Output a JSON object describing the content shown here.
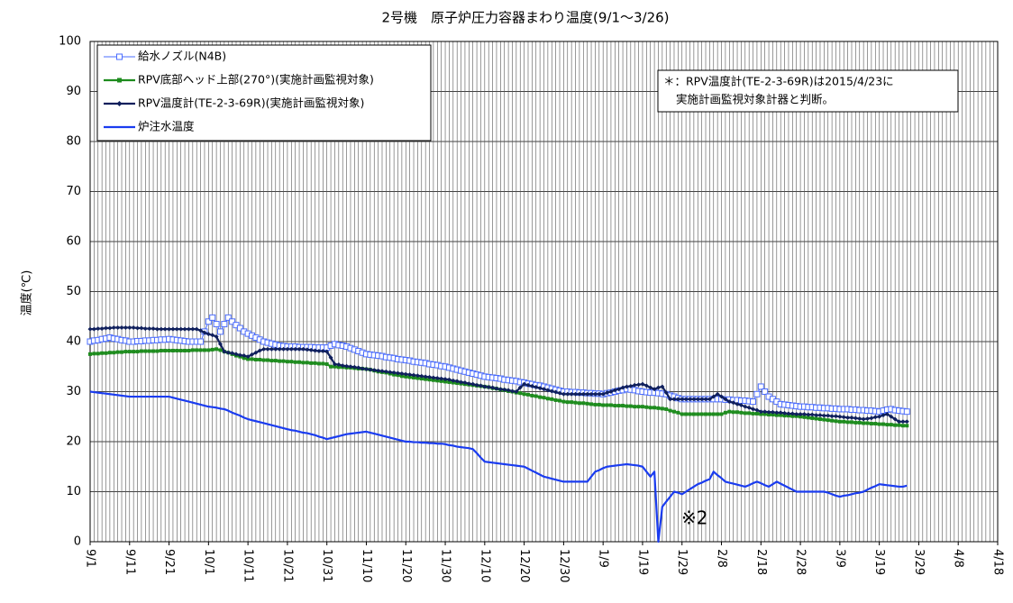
{
  "chart_data": {
    "type": "line",
    "title": "2号機　原子炉圧力容器まわり温度(9/1～3/26)",
    "y_label": "温度(℃)",
    "legend": "upper left",
    "grid": true,
    "ylim": [
      0,
      100
    ],
    "yticks": [
      0,
      10,
      20,
      30,
      40,
      50,
      60,
      70,
      80,
      90,
      100
    ],
    "annotations": [
      {
        "text": "※2"
      }
    ],
    "note": [
      "＊：RPV温度計(TE-2-3-69R)は2015/4/23に",
      "実施計画監視対象計器と判断。"
    ],
    "categories": [
      "9/1",
      null,
      null,
      null,
      null,
      null,
      null,
      null,
      null,
      null,
      "9/11",
      null,
      null,
      null,
      null,
      null,
      null,
      null,
      null,
      null,
      "9/21",
      null,
      null,
      null,
      null,
      null,
      null,
      null,
      null,
      null,
      "10/1",
      null,
      null,
      null,
      null,
      null,
      null,
      null,
      null,
      null,
      "10/11",
      null,
      null,
      null,
      null,
      null,
      null,
      null,
      null,
      null,
      "10/21",
      null,
      null,
      null,
      null,
      null,
      null,
      null,
      null,
      null,
      "10/31",
      null,
      null,
      null,
      null,
      null,
      null,
      null,
      null,
      null,
      "11/10",
      null,
      null,
      null,
      null,
      null,
      null,
      null,
      null,
      null,
      "11/20",
      null,
      null,
      null,
      null,
      null,
      null,
      null,
      null,
      null,
      "11/30",
      null,
      null,
      null,
      null,
      null,
      null,
      null,
      null,
      null,
      "12/10",
      null,
      null,
      null,
      null,
      null,
      null,
      null,
      null,
      null,
      "12/20",
      null,
      null,
      null,
      null,
      null,
      null,
      null,
      null,
      null,
      "12/30",
      null,
      null,
      null,
      null,
      null,
      null,
      null,
      null,
      null,
      "1/9",
      null,
      null,
      null,
      null,
      null,
      null,
      null,
      null,
      null,
      "1/19",
      null,
      null,
      null,
      null,
      null,
      null,
      null,
      null,
      null,
      "1/29",
      null,
      null,
      null,
      null,
      null,
      null,
      null,
      null,
      null,
      "2/8",
      null,
      null,
      null,
      null,
      null,
      null,
      null,
      null,
      null,
      "2/18",
      null,
      null,
      null,
      null,
      null,
      null,
      null,
      null,
      null,
      "2/28",
      null,
      null,
      null,
      null,
      null,
      null,
      null,
      null,
      null,
      "3/9",
      null,
      null,
      null,
      null,
      null,
      null,
      null,
      null,
      null,
      "3/19",
      null,
      null,
      null,
      null,
      null,
      null,
      null,
      null,
      null,
      "3/29",
      null,
      null,
      null,
      null,
      null,
      null,
      null,
      null,
      null,
      "4/8",
      null,
      null,
      null,
      null,
      null,
      null,
      null,
      null,
      null,
      "4/18"
    ],
    "series": [
      {
        "name": "給水ノズル(N4B)",
        "color": "#4a6cff",
        "marker": "square-open",
        "values": [
          40,
          40.2,
          40.3,
          40.5,
          40.6,
          40.8,
          40.6,
          40.5,
          40.3,
          40.2,
          40,
          40,
          40.1,
          40.1,
          40.2,
          40.2,
          40.3,
          40.3,
          40.4,
          40.4,
          40.5,
          40.4,
          40.3,
          40.2,
          40.1,
          40,
          40,
          40,
          40,
          42,
          44,
          44.8,
          43.5,
          42,
          43.5,
          44.8,
          44,
          43.3,
          42.7,
          42,
          41.6,
          41.2,
          40.8,
          40.4,
          40,
          39.8,
          39.6,
          39.4,
          39.2,
          39.1,
          39,
          39,
          39,
          38.9,
          38.9,
          38.9,
          38.9,
          38.8,
          38.8,
          38.8,
          38.8,
          39.2,
          39.5,
          39.3,
          39.2,
          39,
          38.7,
          38.4,
          38.1,
          37.8,
          37.5,
          37.4,
          37.3,
          37.2,
          37.1,
          36.9,
          36.8,
          36.7,
          36.5,
          36.4,
          36.3,
          36.2,
          36,
          35.9,
          35.8,
          35.7,
          35.5,
          35.4,
          35.3,
          35.1,
          35,
          34.8,
          34.6,
          34.4,
          34.2,
          34,
          33.8,
          33.6,
          33.4,
          33.2,
          33,
          32.9,
          32.8,
          32.7,
          32.6,
          32.4,
          32.3,
          32.2,
          32.1,
          31.9,
          31.8,
          31.6,
          31.5,
          31.3,
          31.2,
          31,
          30.8,
          30.6,
          30.4,
          30.2,
          30,
          30,
          29.9,
          29.9,
          29.8,
          29.8,
          29.7,
          29.7,
          29.6,
          29.6,
          29.5,
          29.7,
          29.8,
          30,
          30.2,
          30.3,
          30.5,
          30.4,
          30.3,
          30.1,
          30,
          29.9,
          29.8,
          29.8,
          29.7,
          29.6,
          29.5,
          29.2,
          29,
          28.7,
          28.5,
          28.5,
          28.5,
          28.5,
          28.5,
          28.5,
          28.5,
          28.5,
          28.5,
          28.5,
          28.5,
          28.4,
          28.4,
          28.3,
          28.3,
          28.2,
          28.2,
          28.1,
          28,
          29.5,
          31,
          30,
          29,
          28.5,
          28,
          27.5,
          27.4,
          27.3,
          27.2,
          27.1,
          27,
          27,
          26.9,
          26.9,
          26.8,
          26.8,
          26.7,
          26.7,
          26.6,
          26.6,
          26.5,
          26.5,
          26.5,
          26.4,
          26.4,
          26.3,
          26.3,
          26.2,
          26.2,
          26.1,
          26,
          26.2,
          26.4,
          26.5,
          26.3,
          26.2,
          26.1,
          26,
          null,
          null,
          null,
          null,
          null,
          null,
          null,
          null,
          null,
          null,
          null,
          null,
          null,
          null,
          null,
          null,
          null,
          null,
          null,
          null,
          null,
          null,
          null
        ]
      },
      {
        "name": "RPV底部ヘッド上部(270°)(実施計画監視対象)",
        "color": "#1e8c1e",
        "marker": "square",
        "values": [
          37.5,
          37.6,
          37.6,
          37.7,
          37.7,
          37.8,
          37.8,
          37.9,
          37.9,
          38,
          38,
          38,
          38,
          38.1,
          38.1,
          38.1,
          38.1,
          38.1,
          38.2,
          38.2,
          38.2,
          38.2,
          38.2,
          38.2,
          38.2,
          38.2,
          38.3,
          38.3,
          38.3,
          38.3,
          38.3,
          38.4,
          38.5,
          38.3,
          38,
          37.8,
          37.5,
          37.2,
          37,
          36.7,
          36.5,
          36.5,
          36.4,
          36.4,
          36.3,
          36.3,
          36.2,
          36.2,
          36.1,
          36.1,
          36,
          36,
          35.9,
          35.9,
          35.8,
          35.8,
          35.7,
          35.7,
          35.6,
          35.6,
          35.5,
          35,
          35,
          34.9,
          34.9,
          34.8,
          34.8,
          34.7,
          34.6,
          34.6,
          34.5,
          34.4,
          34.2,
          34,
          33.9,
          33.8,
          33.6,
          33.4,
          33.3,
          33.1,
          33,
          32.9,
          32.8,
          32.7,
          32.6,
          32.5,
          32.4,
          32.3,
          32.2,
          32.1,
          32,
          31.9,
          31.8,
          31.7,
          31.6,
          31.5,
          31.4,
          31.3,
          31.2,
          31.1,
          31,
          30.9,
          30.7,
          30.6,
          30.4,
          30.3,
          30.1,
          30,
          29.8,
          29.7,
          29.5,
          29.4,
          29.2,
          29.1,
          28.9,
          28.8,
          28.6,
          28.5,
          28.3,
          28.2,
          28,
          27.9,
          27.9,
          27.8,
          27.7,
          27.7,
          27.6,
          27.5,
          27.4,
          27.4,
          27.3,
          27.3,
          27.3,
          27.2,
          27.2,
          27.2,
          27.1,
          27.1,
          27,
          27,
          27,
          26.9,
          26.8,
          26.8,
          26.7,
          26.6,
          26.5,
          26.2,
          26,
          25.8,
          25.5,
          25.5,
          25.5,
          25.5,
          25.5,
          25.5,
          25.5,
          25.5,
          25.5,
          25.5,
          25.5,
          25.8,
          26,
          25.9,
          25.9,
          25.8,
          25.7,
          25.7,
          25.6,
          25.6,
          25.5,
          25.5,
          25.4,
          25.4,
          25.3,
          25.3,
          25.2,
          25.2,
          25.1,
          25.1,
          25,
          24.9,
          24.8,
          24.7,
          24.6,
          24.5,
          24.4,
          24.3,
          24.2,
          24.1,
          24,
          24,
          23.9,
          23.9,
          23.8,
          23.8,
          23.7,
          23.7,
          23.6,
          23.6,
          23.5,
          23.5,
          23.4,
          23.4,
          23.3,
          23.3,
          23.2,
          23.2,
          null,
          null,
          null,
          null,
          null,
          null,
          null,
          null,
          null,
          null,
          null,
          null,
          null,
          null,
          null,
          null,
          null,
          null,
          null,
          null,
          null,
          null,
          null
        ]
      },
      {
        "name": "RPV温度計(TE-2-3-69R)(実施計画監視対象)",
        "color": "#0f1f5c",
        "marker": "diamond",
        "values": [
          42.5,
          42.5,
          42.6,
          42.6,
          42.7,
          42.7,
          42.8,
          42.8,
          42.8,
          42.8,
          42.8,
          42.8,
          42.7,
          42.7,
          42.6,
          42.6,
          42.6,
          42.5,
          42.5,
          42.5,
          42.5,
          42.5,
          42.5,
          42.5,
          42.5,
          42.5,
          42.5,
          42.5,
          42.2,
          41.8,
          41.5,
          41.3,
          41,
          39.5,
          38,
          37.8,
          37.7,
          37.5,
          37.3,
          37.2,
          37,
          37.4,
          37.8,
          38.2,
          38.5,
          38.5,
          38.5,
          38.5,
          38.5,
          38.5,
          38.5,
          38.5,
          38.5,
          38.5,
          38.5,
          38.4,
          38.3,
          38.2,
          38.1,
          38.1,
          38,
          36.8,
          35.5,
          35.4,
          35.2,
          35.1,
          35,
          34.9,
          34.8,
          34.6,
          34.5,
          34.4,
          34.3,
          34.2,
          34.1,
          34,
          33.9,
          33.8,
          33.7,
          33.6,
          33.5,
          33.4,
          33.3,
          33.2,
          33.1,
          33,
          32.9,
          32.8,
          32.7,
          32.6,
          32.5,
          32.4,
          32.2,
          32.1,
          31.9,
          31.8,
          31.6,
          31.5,
          31.3,
          31.2,
          31,
          30.9,
          30.8,
          30.6,
          30.5,
          30.4,
          30.3,
          30.1,
          30,
          30.8,
          31.5,
          31.3,
          31.1,
          30.9,
          30.7,
          30.5,
          30.3,
          30.1,
          29.9,
          29.7,
          29.5,
          29.5,
          29.5,
          29.5,
          29.5,
          29.5,
          29.5,
          29.5,
          29.5,
          29.5,
          29.5,
          29.8,
          30,
          30.3,
          30.5,
          30.8,
          31,
          31.1,
          31.3,
          31.4,
          31.5,
          31.2,
          30.8,
          30.5,
          30.8,
          31,
          29.8,
          28.5,
          28.5,
          28.5,
          28.5,
          28.5,
          28.5,
          28.5,
          28.5,
          28.5,
          28.5,
          28.5,
          29,
          29.5,
          29,
          28.5,
          28,
          27.8,
          27.5,
          27.3,
          27,
          26.8,
          26.5,
          26.3,
          26,
          26,
          25.9,
          25.9,
          25.8,
          25.8,
          25.7,
          25.6,
          25.6,
          25.5,
          25.5,
          25.5,
          25.4,
          25.4,
          25.3,
          25.3,
          25.2,
          25.2,
          25.1,
          25.1,
          25,
          24.9,
          24.8,
          24.8,
          24.7,
          24.6,
          24.5,
          24.6,
          24.7,
          24.9,
          25,
          25.3,
          25.5,
          25,
          24.5,
          24,
          24,
          24,
          null,
          null,
          null,
          null,
          null,
          null,
          null,
          null,
          null,
          null,
          null,
          null,
          null,
          null,
          null,
          null,
          null,
          null,
          null,
          null,
          null,
          null,
          null
        ]
      },
      {
        "name": "炉注水温度",
        "color": "#1a3cf0",
        "marker": "none",
        "values": [
          30,
          29.9,
          29.8,
          29.7,
          29.6,
          29.5,
          29.4,
          29.3,
          29.2,
          29.1,
          29,
          29,
          29,
          29,
          29,
          29,
          29,
          29,
          29,
          29,
          29,
          28.8,
          28.6,
          28.4,
          28.2,
          28,
          27.8,
          27.6,
          27.4,
          27.2,
          27,
          26.9,
          26.8,
          26.6,
          26.5,
          26.2,
          25.8,
          25.5,
          25.2,
          24.8,
          24.5,
          24.3,
          24.1,
          23.9,
          23.7,
          23.5,
          23.3,
          23.1,
          22.9,
          22.7,
          22.5,
          22.3,
          22.2,
          22,
          21.8,
          21.7,
          21.5,
          21.3,
          21,
          20.8,
          20.5,
          20.7,
          20.9,
          21.1,
          21.3,
          21.5,
          21.6,
          21.7,
          21.8,
          21.9,
          22,
          21.8,
          21.6,
          21.4,
          21.2,
          21,
          20.8,
          20.6,
          20.4,
          20.2,
          20,
          20,
          19.9,
          19.9,
          19.8,
          19.8,
          19.7,
          19.7,
          19.6,
          19.6,
          19.5,
          19.3,
          19.2,
          19,
          18.9,
          18.8,
          18.7,
          18.5,
          17.7,
          16.8,
          16,
          15.9,
          15.8,
          15.7,
          15.6,
          15.5,
          15.4,
          15.3,
          15.2,
          15.1,
          15,
          14.6,
          14.2,
          13.8,
          13.4,
          13,
          12.8,
          12.6,
          12.4,
          12.2,
          12,
          12,
          12,
          12,
          12,
          12,
          12,
          13,
          14,
          14.3,
          14.7,
          15,
          15.1,
          15.2,
          15.3,
          15.4,
          15.5,
          15.4,
          15.3,
          15.2,
          15,
          14,
          13,
          14,
          0,
          7,
          8,
          9,
          10,
          9.8,
          9.5,
          10,
          10.5,
          11,
          11.5,
          11.8,
          12.2,
          12.5,
          14,
          13.3,
          12.7,
          12,
          11.8,
          11.6,
          11.4,
          11.2,
          11,
          11.3,
          11.7,
          12,
          11.7,
          11.3,
          11,
          11.5,
          12,
          11.6,
          11.2,
          10.8,
          10.4,
          10,
          10,
          10,
          10,
          10,
          10,
          10,
          10,
          9.8,
          9.5,
          9.2,
          9,
          9.2,
          9.3,
          9.5,
          9.7,
          9.8,
          10,
          10.4,
          10.8,
          11.1,
          11.5,
          11.4,
          11.3,
          11.2,
          11.1,
          11,
          11,
          11.2,
          null,
          null,
          null,
          null,
          null,
          null,
          null,
          null,
          null,
          null,
          null,
          null,
          null,
          null,
          null,
          null,
          null,
          null,
          null,
          null,
          null,
          null,
          null
        ]
      }
    ]
  }
}
